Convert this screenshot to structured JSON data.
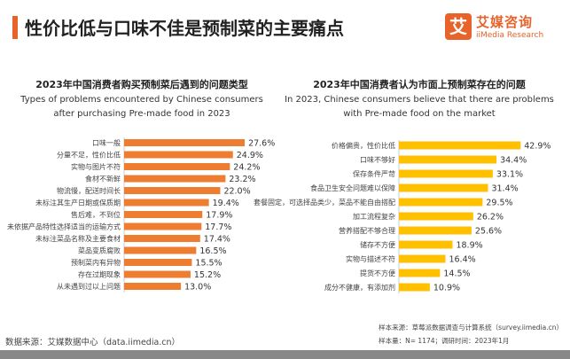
{
  "header": {
    "title": "性价比低与口味不佳是预制菜的主要痛点"
  },
  "logo": {
    "cn": "艾媒咨询",
    "en": "iiMedia Research",
    "mark": "艾"
  },
  "chart_data": [
    {
      "type": "bar",
      "orientation": "horizontal",
      "title": "2023年中国消费者购买预制菜后遇到的问题类型",
      "subtitle": "Types of problems encountered by Chinese consumers after purchasing Pre-made food in 2023",
      "color": "#ed7d31",
      "categories": [
        "口味一般",
        "分量不足，性价比低",
        "实物与图片不符",
        "食材不新鲜",
        "物流慢，配送时间长",
        "未标注其生产日期或保质期",
        "售后难，不到位",
        "未依据产品特性选择适当的运输方式",
        "未标注菜品名称及主要食材",
        "菜品变质腐败",
        "预制菜内有异物",
        "存在过期现象",
        "从未遇到过以上问题"
      ],
      "values": [
        27.6,
        24.9,
        24.2,
        23.2,
        22.0,
        19.4,
        17.9,
        17.7,
        17.4,
        16.5,
        15.5,
        15.2,
        13.0
      ],
      "labels": [
        "27.6%",
        "24.9%",
        "24.2%",
        "23.2%",
        "22.0%",
        "19.4%",
        "17.9%",
        "17.7%",
        "17.4%",
        "16.5%",
        "15.5%",
        "15.2%",
        "13.0%"
      ]
    },
    {
      "type": "bar",
      "orientation": "horizontal",
      "title": "2023年中国消费者认为市面上预制菜存在的问题",
      "subtitle": "In 2023, Chinese consumers believe that there are problems with Pre-made food on the market",
      "color": "#ffc000",
      "categories": [
        "价格偏贵，性价比低",
        "口味不够好",
        "保存条件严苛",
        "食品卫生安全问题难以保障",
        "套餐固定，可选择品类少，菜品不能自由搭配",
        "加工流程复杂",
        "营养搭配不够合理",
        "储存不方便",
        "实物与描述不符",
        "提货不方便",
        "成分不健康，有添加剂"
      ],
      "values": [
        42.9,
        34.4,
        33.1,
        31.4,
        29.5,
        26.2,
        25.6,
        18.9,
        16.4,
        14.5,
        10.9
      ],
      "labels": [
        "42.9%",
        "34.4%",
        "33.1%",
        "31.4%",
        "29.5%",
        "26.2%",
        "25.6%",
        "18.9%",
        "16.4%",
        "14.5%",
        "10.9%"
      ]
    }
  ],
  "footer": {
    "source": "数据来源：艾媒数据中心（data.iimedia.cn）",
    "sample_source": "样本来源：草莓派数据调查与计算系统（survey.iimedia.cn）",
    "sample_size": "样本量：N= 1174；调研时间：2023年1月"
  }
}
